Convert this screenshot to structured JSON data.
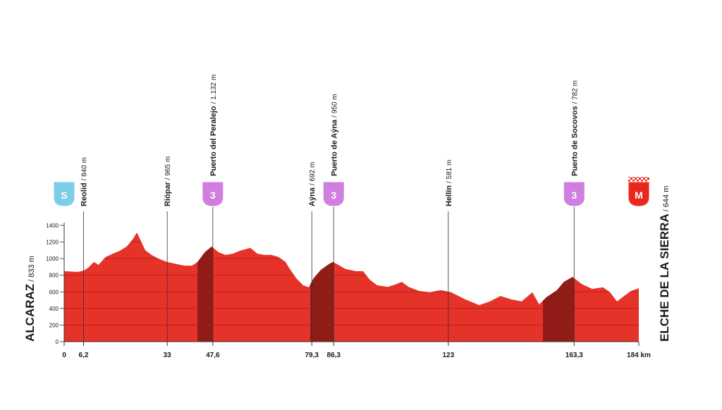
{
  "chart_data": {
    "type": "area",
    "x": [
      0,
      4.3,
      6.2,
      7.7,
      9.5,
      11,
      13.3,
      15.6,
      17.8,
      20,
      21.9,
      23.3,
      24.6,
      26,
      28,
      30.2,
      33,
      35.9,
      38.6,
      40.9,
      42.7,
      45,
      47.2,
      49.5,
      51.7,
      54,
      56.2,
      59.6,
      61.9,
      64.1,
      66.4,
      68.6,
      70.9,
      72,
      74.3,
      76.5,
      78.3,
      79.9,
      82.2,
      84.4,
      86,
      87.8,
      90.1,
      93.4,
      95.7,
      97.9,
      100.2,
      103.6,
      105.8,
      108.1,
      110.3,
      113.7,
      117.1,
      120.5,
      123.9,
      128.4,
      132.9,
      136.3,
      139.7,
      143.1,
      146.5,
      149.9,
      152.1,
      154.4,
      157.8,
      160,
      162.8,
      165.7,
      169.1,
      172.5,
      174.8,
      177,
      179.3,
      181.5,
      184
    ],
    "values": [
      850,
      840,
      855,
      890,
      960,
      925,
      1020,
      1060,
      1095,
      1145,
      1230,
      1315,
      1210,
      1100,
      1045,
      1000,
      960,
      935,
      915,
      915,
      960,
      1075,
      1145,
      1075,
      1045,
      1060,
      1095,
      1130,
      1060,
      1045,
      1045,
      1020,
      960,
      890,
      765,
      680,
      655,
      765,
      865,
      925,
      960,
      925,
      875,
      850,
      850,
      745,
      680,
      660,
      685,
      720,
      660,
      610,
      595,
      620,
      595,
      510,
      440,
      485,
      550,
      510,
      485,
      595,
      450,
      535,
      620,
      720,
      780,
      695,
      635,
      655,
      595,
      485,
      550,
      610,
      644
    ],
    "color": "#e6332a",
    "climb_color": "#8f1c17",
    "xlim": [
      0,
      184
    ],
    "ylim": [
      0,
      1400
    ],
    "yticks": [
      0,
      200,
      400,
      600,
      800,
      1000,
      1200,
      1400
    ],
    "xticks": [
      0,
      {
        "value": 6.2,
        "label": "6,2"
      },
      33,
      {
        "value": 47.6,
        "label": "47,6"
      },
      {
        "value": 79.3,
        "label": "79,3"
      },
      {
        "value": 86.3,
        "label": "86,3"
      },
      123,
      {
        "value": 163.3,
        "label": "163,3"
      },
      {
        "value": 184,
        "label": "184 km"
      }
    ],
    "grid": true,
    "start": {
      "name": "ALCARAZ",
      "label": "/ 833 m",
      "icon": "S"
    },
    "finish": {
      "name": "ELCHE DE LA SIERRA",
      "label": "/ 644 m",
      "icon": "M"
    },
    "waypoints": [
      {
        "name": "Reolid",
        "label": "/ 840 m",
        "x": 6.2
      },
      {
        "name": "Riópar",
        "label": "/ 965 m",
        "x": 33
      },
      {
        "name": "Puerto del Peralejo",
        "label": "/ 1.132 m",
        "x": 47.6,
        "category": 3
      },
      {
        "name": "Aýna",
        "label": "/ 692 m",
        "x": 79.3
      },
      {
        "name": "Puerto de Aýna",
        "label": "/ 950 m",
        "x": 86.3,
        "category": 3
      },
      {
        "name": "Hellín",
        "label": "/ 581 m",
        "x": 123
      },
      {
        "name": "Puerto de Socovos",
        "label": "/ 782 m",
        "x": 163.3,
        "category": 3
      }
    ],
    "climbs": [
      {
        "start": 42.7,
        "end": 47.6
      },
      {
        "start": 78.8,
        "end": 86.3
      },
      {
        "start": 153.3,
        "end": 163.3
      }
    ]
  }
}
